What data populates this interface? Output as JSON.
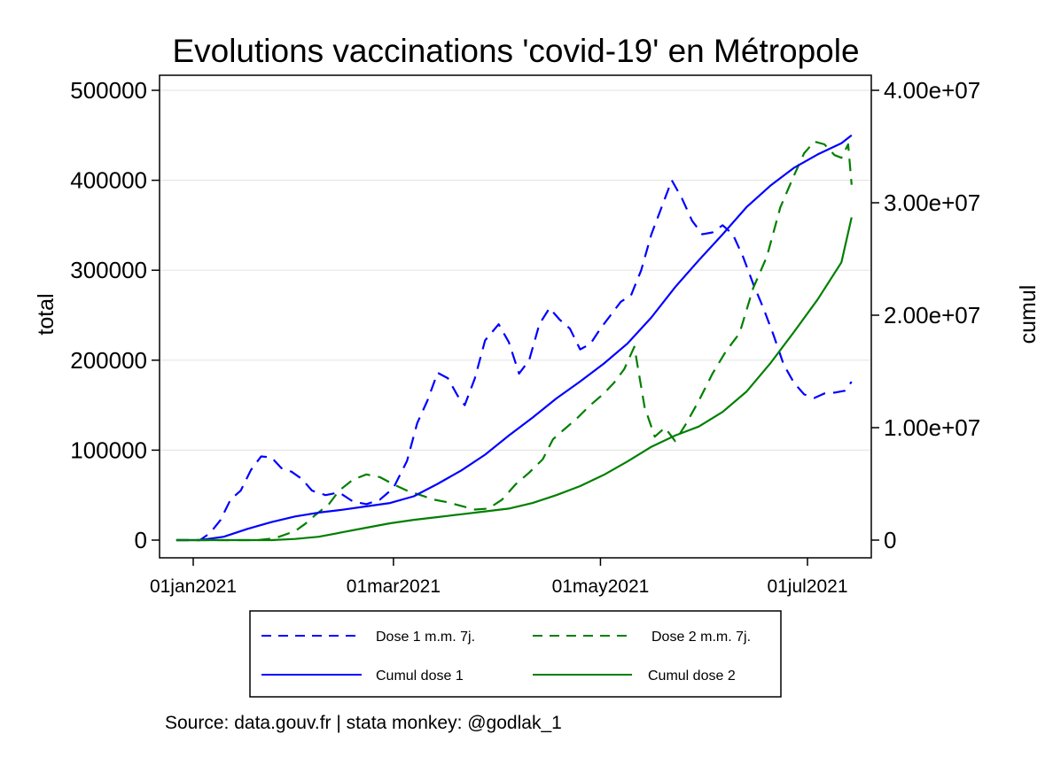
{
  "chart_data": {
    "type": "line",
    "title": "Evolutions vaccinations 'covid-19' en Métropole",
    "ylabel_left": "total",
    "ylabel_right": "cumul",
    "note": "Source: data.gouv.fr | stata monkey: @godlak_1",
    "x_ticks": [
      {
        "label": "01jan2021",
        "date": "2021-01-01"
      },
      {
        "label": "01mar2021",
        "date": "2021-03-01"
      },
      {
        "label": "01may2021",
        "date": "2021-05-01"
      },
      {
        "label": "01jul2021",
        "date": "2021-07-01"
      }
    ],
    "xlim": [
      "2020-12-23",
      "2021-07-20"
    ],
    "ylim_left": [
      0,
      500000
    ],
    "ylim_right": [
      0,
      40000000
    ],
    "y_ticks_left": [
      {
        "label": "0",
        "value": 0
      },
      {
        "label": "100000",
        "value": 100000
      },
      {
        "label": "200000",
        "value": 200000
      },
      {
        "label": "300000",
        "value": 300000
      },
      {
        "label": "400000",
        "value": 400000
      },
      {
        "label": "500000",
        "value": 500000
      }
    ],
    "y_ticks_right": [
      {
        "label": "0",
        "value": 0
      },
      {
        "label": "1.00e+07",
        "value": 10000000
      },
      {
        "label": "2.00e+07",
        "value": 20000000
      },
      {
        "label": "3.00e+07",
        "value": 30000000
      },
      {
        "label": "4.00e+07",
        "value": 40000000
      }
    ],
    "grid": true,
    "legend_position": "bottom",
    "series": [
      {
        "name": "Dose 1 m.m. 7j.",
        "axis": "left",
        "style": "dashed",
        "color": "#0000ff",
        "points": [
          [
            "2020-12-27",
            0
          ],
          [
            "2020-12-31",
            0
          ],
          [
            "2021-01-03",
            0
          ],
          [
            "2021-01-06",
            8000
          ],
          [
            "2021-01-09",
            22000
          ],
          [
            "2021-01-12",
            45000
          ],
          [
            "2021-01-15",
            55000
          ],
          [
            "2021-01-18",
            78000
          ],
          [
            "2021-01-21",
            93000
          ],
          [
            "2021-01-24",
            92000
          ],
          [
            "2021-01-27",
            80000
          ],
          [
            "2021-01-30",
            76000
          ],
          [
            "2021-02-02",
            68000
          ],
          [
            "2021-02-05",
            55000
          ],
          [
            "2021-02-09",
            50000
          ],
          [
            "2021-02-13",
            53000
          ],
          [
            "2021-02-17",
            43000
          ],
          [
            "2021-02-21",
            40000
          ],
          [
            "2021-02-25",
            45000
          ],
          [
            "2021-03-01",
            58000
          ],
          [
            "2021-03-05",
            88000
          ],
          [
            "2021-03-08",
            130000
          ],
          [
            "2021-03-11",
            155000
          ],
          [
            "2021-03-14",
            186000
          ],
          [
            "2021-03-17",
            180000
          ],
          [
            "2021-03-20",
            160000
          ],
          [
            "2021-03-22",
            150000
          ],
          [
            "2021-03-25",
            180000
          ],
          [
            "2021-03-28",
            222000
          ],
          [
            "2021-04-01",
            240000
          ],
          [
            "2021-04-04",
            220000
          ],
          [
            "2021-04-07",
            185000
          ],
          [
            "2021-04-10",
            200000
          ],
          [
            "2021-04-13",
            240000
          ],
          [
            "2021-04-16",
            258000
          ],
          [
            "2021-04-19",
            245000
          ],
          [
            "2021-04-22",
            235000
          ],
          [
            "2021-04-25",
            212000
          ],
          [
            "2021-04-28",
            218000
          ],
          [
            "2021-05-01",
            235000
          ],
          [
            "2021-05-04",
            250000
          ],
          [
            "2021-05-07",
            265000
          ],
          [
            "2021-05-10",
            272000
          ],
          [
            "2021-05-13",
            300000
          ],
          [
            "2021-05-16",
            340000
          ],
          [
            "2021-05-19",
            370000
          ],
          [
            "2021-05-22",
            400000
          ],
          [
            "2021-05-25",
            380000
          ],
          [
            "2021-05-28",
            355000
          ],
          [
            "2021-05-31",
            340000
          ],
          [
            "2021-06-03",
            342000
          ],
          [
            "2021-06-06",
            350000
          ],
          [
            "2021-06-09",
            340000
          ],
          [
            "2021-06-12",
            315000
          ],
          [
            "2021-06-15",
            285000
          ],
          [
            "2021-06-18",
            258000
          ],
          [
            "2021-06-21",
            228000
          ],
          [
            "2021-06-24",
            195000
          ],
          [
            "2021-06-27",
            175000
          ],
          [
            "2021-06-30",
            162000
          ],
          [
            "2021-07-03",
            158000
          ],
          [
            "2021-07-06",
            163000
          ],
          [
            "2021-07-09",
            164000
          ],
          [
            "2021-07-12",
            166000
          ],
          [
            "2021-07-14",
            176000
          ]
        ]
      },
      {
        "name": "Dose 2 m.m. 7j.",
        "axis": "left",
        "style": "dashed",
        "color": "#007f00",
        "points": [
          [
            "2020-12-27",
            0
          ],
          [
            "2021-01-10",
            0
          ],
          [
            "2021-01-20",
            0
          ],
          [
            "2021-01-25",
            2000
          ],
          [
            "2021-01-31",
            10000
          ],
          [
            "2021-02-03",
            18000
          ],
          [
            "2021-02-06",
            28000
          ],
          [
            "2021-02-10",
            40000
          ],
          [
            "2021-02-13",
            55000
          ],
          [
            "2021-02-17",
            67000
          ],
          [
            "2021-02-21",
            73000
          ],
          [
            "2021-02-25",
            70000
          ],
          [
            "2021-03-01",
            62000
          ],
          [
            "2021-03-05",
            55000
          ],
          [
            "2021-03-09",
            50000
          ],
          [
            "2021-03-13",
            45000
          ],
          [
            "2021-03-17",
            42000
          ],
          [
            "2021-03-21",
            38000
          ],
          [
            "2021-03-25",
            34000
          ],
          [
            "2021-03-29",
            35000
          ],
          [
            "2021-04-02",
            45000
          ],
          [
            "2021-04-06",
            62000
          ],
          [
            "2021-04-10",
            75000
          ],
          [
            "2021-04-14",
            90000
          ],
          [
            "2021-04-17",
            112000
          ],
          [
            "2021-04-20",
            122000
          ],
          [
            "2021-04-24",
            135000
          ],
          [
            "2021-04-28",
            150000
          ],
          [
            "2021-05-02",
            163000
          ],
          [
            "2021-05-05",
            175000
          ],
          [
            "2021-05-08",
            190000
          ],
          [
            "2021-05-11",
            215000
          ],
          [
            "2021-05-14",
            148000
          ],
          [
            "2021-05-17",
            115000
          ],
          [
            "2021-05-20",
            125000
          ],
          [
            "2021-05-23",
            110000
          ],
          [
            "2021-05-26",
            128000
          ],
          [
            "2021-05-30",
            155000
          ],
          [
            "2021-06-03",
            185000
          ],
          [
            "2021-06-07",
            210000
          ],
          [
            "2021-06-11",
            230000
          ],
          [
            "2021-06-15",
            280000
          ],
          [
            "2021-06-19",
            315000
          ],
          [
            "2021-06-23",
            370000
          ],
          [
            "2021-06-27",
            405000
          ],
          [
            "2021-06-30",
            430000
          ],
          [
            "2021-07-03",
            443000
          ],
          [
            "2021-07-06",
            440000
          ],
          [
            "2021-07-09",
            428000
          ],
          [
            "2021-07-11",
            425000
          ],
          [
            "2021-07-13",
            440000
          ],
          [
            "2021-07-14",
            395000
          ]
        ]
      },
      {
        "name": "Cumul dose 1",
        "axis": "right",
        "style": "solid",
        "color": "#0000ff",
        "points": [
          [
            "2020-12-27",
            0
          ],
          [
            "2021-01-03",
            0
          ],
          [
            "2021-01-10",
            300000
          ],
          [
            "2021-01-17",
            1000000
          ],
          [
            "2021-01-24",
            1600000
          ],
          [
            "2021-01-31",
            2100000
          ],
          [
            "2021-02-07",
            2450000
          ],
          [
            "2021-02-14",
            2700000
          ],
          [
            "2021-02-21",
            3000000
          ],
          [
            "2021-02-28",
            3300000
          ],
          [
            "2021-03-07",
            3900000
          ],
          [
            "2021-03-14",
            5000000
          ],
          [
            "2021-03-21",
            6200000
          ],
          [
            "2021-03-28",
            7600000
          ],
          [
            "2021-04-04",
            9300000
          ],
          [
            "2021-04-11",
            10900000
          ],
          [
            "2021-04-18",
            12600000
          ],
          [
            "2021-04-25",
            14100000
          ],
          [
            "2021-05-02",
            15700000
          ],
          [
            "2021-05-09",
            17500000
          ],
          [
            "2021-05-16",
            19800000
          ],
          [
            "2021-05-23",
            22500000
          ],
          [
            "2021-05-30",
            24900000
          ],
          [
            "2021-06-06",
            27200000
          ],
          [
            "2021-06-13",
            29600000
          ],
          [
            "2021-06-20",
            31500000
          ],
          [
            "2021-06-27",
            33100000
          ],
          [
            "2021-07-04",
            34300000
          ],
          [
            "2021-07-11",
            35300000
          ],
          [
            "2021-07-14",
            36000000
          ]
        ]
      },
      {
        "name": "Cumul dose 2",
        "axis": "right",
        "style": "solid",
        "color": "#007f00",
        "points": [
          [
            "2020-12-27",
            0
          ],
          [
            "2021-01-24",
            0
          ],
          [
            "2021-01-31",
            100000
          ],
          [
            "2021-02-07",
            300000
          ],
          [
            "2021-02-14",
            700000
          ],
          [
            "2021-02-21",
            1100000
          ],
          [
            "2021-02-28",
            1500000
          ],
          [
            "2021-03-07",
            1800000
          ],
          [
            "2021-03-14",
            2050000
          ],
          [
            "2021-03-21",
            2300000
          ],
          [
            "2021-03-28",
            2550000
          ],
          [
            "2021-04-04",
            2800000
          ],
          [
            "2021-04-11",
            3300000
          ],
          [
            "2021-04-18",
            4000000
          ],
          [
            "2021-04-25",
            4800000
          ],
          [
            "2021-05-02",
            5800000
          ],
          [
            "2021-05-09",
            7000000
          ],
          [
            "2021-05-16",
            8300000
          ],
          [
            "2021-05-23",
            9300000
          ],
          [
            "2021-05-30",
            10100000
          ],
          [
            "2021-06-06",
            11400000
          ],
          [
            "2021-06-13",
            13200000
          ],
          [
            "2021-06-20",
            15700000
          ],
          [
            "2021-06-27",
            18500000
          ],
          [
            "2021-07-04",
            21400000
          ],
          [
            "2021-07-11",
            24700000
          ],
          [
            "2021-07-14",
            28700000
          ]
        ]
      }
    ]
  }
}
